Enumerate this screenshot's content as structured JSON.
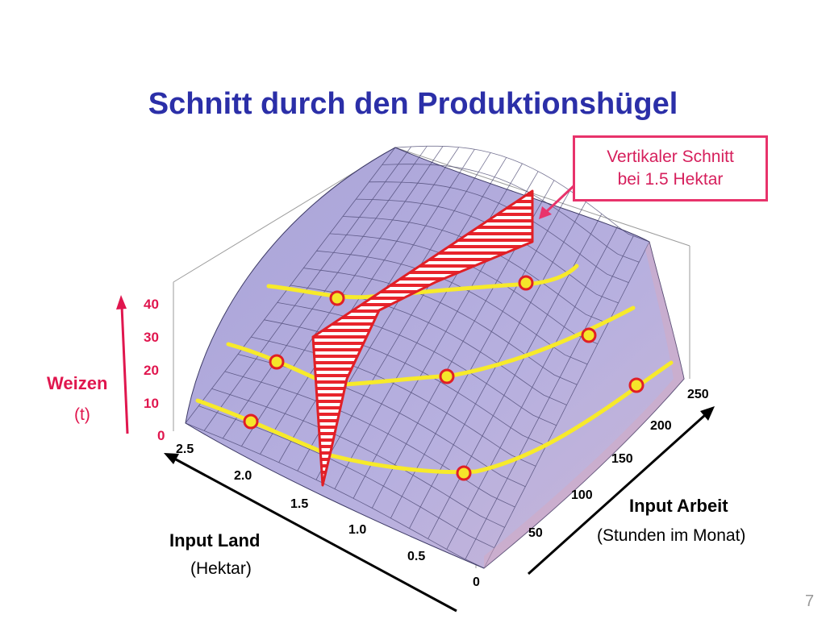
{
  "title": "Schnitt durch den Produktionshügel",
  "callout": {
    "line1": "Vertikaler Schnitt",
    "line2": "bei 1.5 Hektar"
  },
  "axes": {
    "z": {
      "label": "Weizen",
      "unit": "(t)",
      "ticks": [
        "40",
        "30",
        "20",
        "10",
        "0"
      ]
    },
    "land": {
      "label": "Input Land",
      "unit": "(Hektar)",
      "ticks": [
        "2.5",
        "2.0",
        "1.5",
        "1.0",
        "0.5"
      ]
    },
    "labor": {
      "label": "Input Arbeit",
      "unit": "(Stunden im Monat)",
      "ticks": [
        "0",
        "50",
        "100",
        "150",
        "200",
        "250"
      ]
    }
  },
  "page_number": "7",
  "colors": {
    "title": "#2b2fa8",
    "accent": "#e0164e",
    "surface": "#b3addc",
    "mesh": "#3d3a66",
    "isoquant": "#f7ea2a",
    "section": "#e01f26"
  }
}
